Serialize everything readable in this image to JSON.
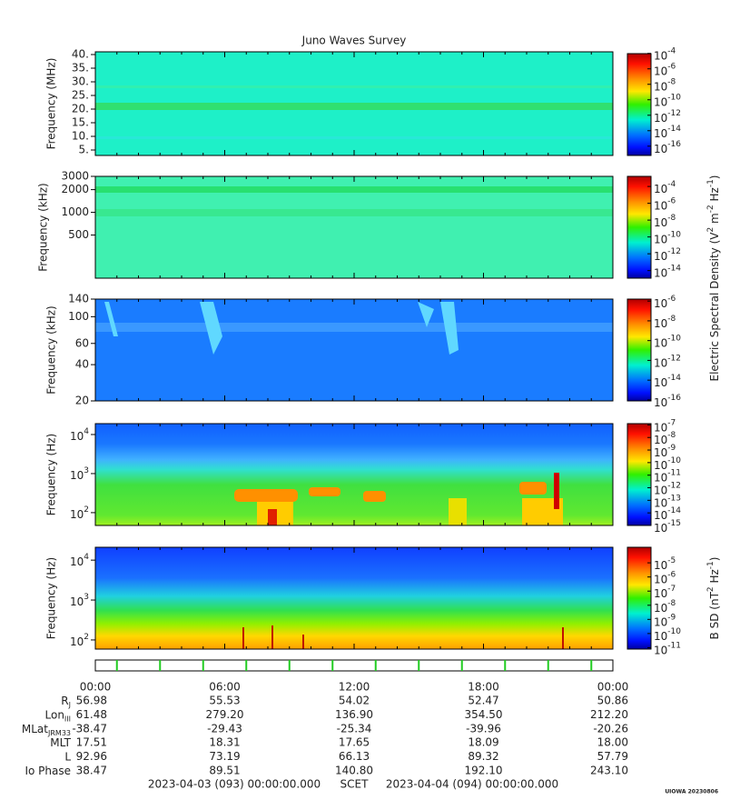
{
  "title": "Juno Waves Survey",
  "xlim": [
    0,
    24
  ],
  "xticks": [
    {
      "value": 0,
      "label": "00:00"
    },
    {
      "value": 6,
      "label": "06:00"
    },
    {
      "value": 12,
      "label": "12:00"
    },
    {
      "value": 18,
      "label": "18:00"
    },
    {
      "value": 24,
      "label": "00:00"
    }
  ],
  "xminorticks": [
    1,
    2,
    3,
    4,
    5,
    7,
    8,
    9,
    10,
    11,
    13,
    14,
    15,
    16,
    17,
    19,
    20,
    21,
    22,
    23
  ],
  "panels": [
    {
      "ylabel": "Frequency (MHz)",
      "log": false,
      "ylim": [
        3,
        41
      ],
      "yticks": [
        {
          "value": 40,
          "label": "40."
        },
        {
          "value": 35,
          "label": "35."
        },
        {
          "value": 30,
          "label": "30."
        },
        {
          "value": 25,
          "label": "25."
        },
        {
          "value": 20,
          "label": "20."
        },
        {
          "value": 15,
          "label": "15."
        },
        {
          "value": 10,
          "label": "10."
        },
        {
          "value": 5,
          "label": "5."
        }
      ],
      "colorbar": {
        "base": "10",
        "clim": [
          -17.2,
          -3.8
        ],
        "exponents": [
          -4,
          -6,
          -8,
          -10,
          -12,
          -14,
          -16
        ]
      }
    },
    {
      "ylabel": "Frequency (kHz)",
      "log": true,
      "ylim": [
        134,
        3000
      ],
      "yticks": [
        3000,
        2000,
        1000,
        500
      ],
      "colorbar": {
        "base": "10",
        "clim": [
          -14.9,
          -2.8
        ],
        "exponents": [
          -4,
          -6,
          -8,
          -10,
          -12,
          -14
        ]
      }
    },
    {
      "ylabel": "Frequency (kHz)",
      "log": true,
      "ylim": [
        20,
        140
      ],
      "yticks": [
        140,
        100,
        60,
        40,
        20
      ],
      "colorbar": {
        "base": "10",
        "clim": [
          -16.1,
          -5.8
        ],
        "exponents": [
          -6,
          -8,
          -10,
          -12,
          -14,
          -16
        ]
      }
    },
    {
      "ylabel": "Frequency (Hz)",
      "log": true,
      "ylim": [
        47,
        19000
      ],
      "ytick_base": "10",
      "ytick_exponents": [
        4,
        3,
        2
      ],
      "colorbar": {
        "base": "10",
        "clim": [
          -15,
          -6.9
        ],
        "exponents": [
          -7,
          -8,
          -9,
          -10,
          -11,
          -12,
          -13,
          -14,
          -15
        ]
      }
    },
    {
      "ylabel": "Frequency (Hz)",
      "log": true,
      "ylim": [
        59,
        21000
      ],
      "ytick_base": "10",
      "ytick_exponents": [
        4,
        3,
        2
      ],
      "colorbar": {
        "base": "10",
        "clim": [
          -11.1,
          -3.9
        ],
        "exponents": [
          -5,
          -6,
          -7,
          -8,
          -9,
          -10,
          -11
        ]
      }
    }
  ],
  "colorbar_titles": [
    [
      {
        "text": "Electric Spectral Density (V"
      },
      {
        "text": "2",
        "sup": true
      },
      {
        "text": " m"
      },
      {
        "text": "-2",
        "sup": true
      },
      {
        "text": " Hz"
      },
      {
        "text": "-1",
        "sup": true
      },
      {
        "text": ")"
      }
    ],
    [
      {
        "text": "B SD (nT"
      },
      {
        "text": "2",
        "sup": true
      },
      {
        "text": " Hz"
      },
      {
        "text": "-1",
        "sup": true
      },
      {
        "text": ")"
      }
    ]
  ],
  "strip": {
    "color": "#22cc22",
    "marks": [
      1,
      3,
      5,
      7,
      9,
      11,
      13,
      15,
      17,
      19,
      21,
      23
    ]
  },
  "ephemeris": [
    {
      "label": "R",
      "sub": "J",
      "values": [
        56.98,
        55.53,
        54.02,
        52.47,
        50.86
      ]
    },
    {
      "label": "Lon",
      "sub": "III",
      "values": [
        61.48,
        279.2,
        136.9,
        354.5,
        212.2
      ],
      "value_labels": [
        "61.48",
        "279.20",
        "136.90",
        "354.50",
        "212.20"
      ]
    },
    {
      "label": "MLat",
      "sub": "JRM33",
      "values": [
        -38.47,
        -29.43,
        -25.34,
        -39.96,
        -20.26
      ]
    },
    {
      "label": "MLT",
      "values": [
        17.51,
        18.31,
        17.65,
        18.09,
        18.0
      ],
      "value_labels": [
        "17.51",
        "18.31",
        "17.65",
        "18.09",
        "18.00"
      ]
    },
    {
      "label": "L",
      "values": [
        92.96,
        73.19,
        66.13,
        89.32,
        57.79
      ]
    },
    {
      "label": "Io Phase",
      "values": [
        38.47,
        89.51,
        140.8,
        192.1,
        243.1
      ],
      "value_labels": [
        "38.47",
        "89.51",
        "140.80",
        "192.10",
        "243.10"
      ]
    }
  ],
  "footer": {
    "start": "2023-04-03 (093) 00:00:00.000",
    "center": "SCET",
    "end": "2023-04-04 (094) 00:00:00.000"
  },
  "credit": "UIOWA 20230806"
}
